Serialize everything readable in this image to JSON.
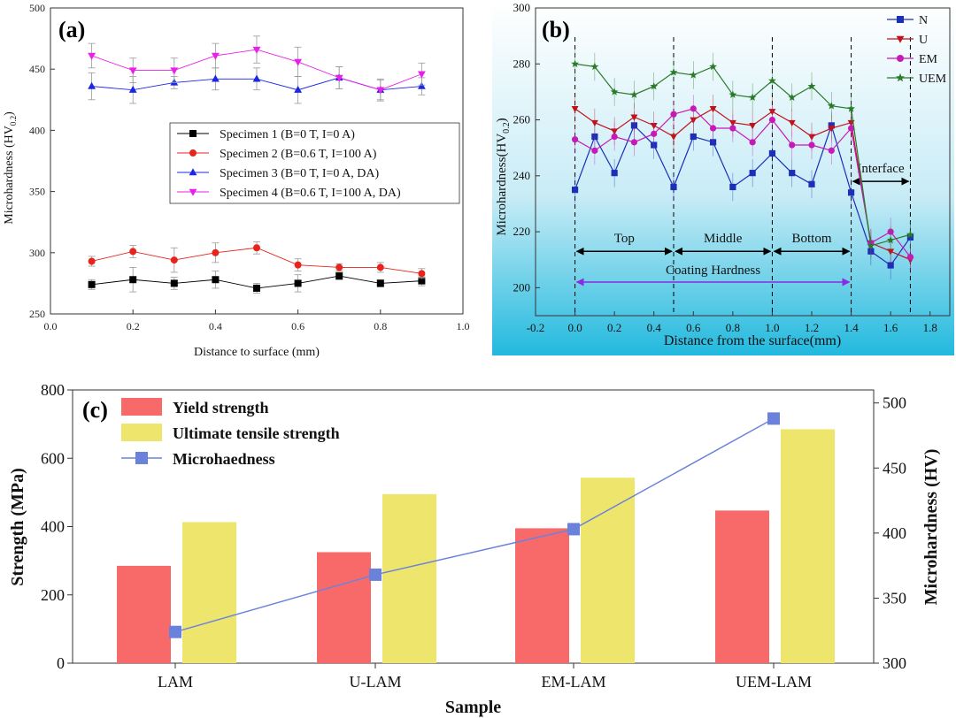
{
  "chart_data": [
    {
      "id": "a",
      "panel_label": "(a)",
      "type": "line",
      "xlabel": "Distance to surface (mm)",
      "ylabel": "Microhardness (HV",
      "ylabel_sub": "0.2",
      "ylabel_close": ")",
      "xlim": [
        0.0,
        1.0
      ],
      "ylim": [
        250,
        500
      ],
      "xticks": [
        "0.0",
        "0.2",
        "0.4",
        "0.6",
        "0.8",
        "1.0"
      ],
      "yticks": [
        "250",
        "300",
        "350",
        "400",
        "450",
        "500"
      ],
      "legend_position": "center-right",
      "x": [
        0.1,
        0.2,
        0.3,
        0.4,
        0.5,
        0.6,
        0.7,
        0.8,
        0.9
      ],
      "series": [
        {
          "name": "Specimen 1 (B=0 T, I=0 A)",
          "color": "#000000",
          "marker": "square",
          "values": [
            274,
            278,
            275,
            278,
            271,
            275,
            281,
            275,
            277
          ],
          "errors": [
            4,
            10,
            5,
            7,
            4,
            7,
            3,
            3,
            4
          ]
        },
        {
          "name": "Specimen 2 (B=0.6 T, I=100 A)",
          "color": "#e8231c",
          "marker": "circle",
          "values": [
            293,
            301,
            294,
            300,
            304,
            290,
            288,
            288,
            283
          ],
          "errors": [
            4,
            5,
            10,
            8,
            5,
            5,
            3,
            4,
            4
          ]
        },
        {
          "name": "Specimen 3 (B=0 T, I=0 A, DA)",
          "color": "#1c27e6",
          "marker": "triangle-up",
          "values": [
            436,
            433,
            439,
            442,
            442,
            433,
            443,
            433,
            436
          ],
          "errors": [
            11,
            11,
            5,
            9,
            9,
            11,
            9,
            8,
            7
          ]
        },
        {
          "name": "Specimen 4 (B=0.6 T, I=100 A, DA)",
          "color": "#ea1fea",
          "marker": "triangle-down",
          "values": [
            461,
            449,
            449,
            461,
            466,
            456,
            443,
            433,
            446
          ],
          "errors": [
            10,
            10,
            10,
            10,
            11,
            12,
            9,
            9,
            9
          ]
        }
      ]
    },
    {
      "id": "b",
      "panel_label": "(b)",
      "type": "line",
      "xlabel": "Distance from the surface(mm)",
      "ylabel": "Microhardness(HV",
      "ylabel_sub": "0.2",
      "ylabel_close": ")",
      "xlim": [
        -0.2,
        1.9
      ],
      "ylim": [
        190,
        300
      ],
      "xticks": [
        "-0.2",
        "0.0",
        "0.2",
        "0.4",
        "0.6",
        "0.8",
        "1.0",
        "1.2",
        "1.4",
        "1.6",
        "1.8"
      ],
      "yticks": [
        "200",
        "220",
        "240",
        "260",
        "280",
        "300"
      ],
      "legend_position": "top-right",
      "region_labels": [
        "Top",
        "Middle",
        "Bottom",
        "Interface"
      ],
      "annotation": "Coating Hardness",
      "x": [
        0.0,
        0.1,
        0.2,
        0.3,
        0.4,
        0.5,
        0.6,
        0.7,
        0.8,
        0.9,
        1.0,
        1.1,
        1.2,
        1.3,
        1.4,
        1.5,
        1.6,
        1.7
      ],
      "series": [
        {
          "name": "N",
          "color": "#1c2fb8",
          "marker": "square",
          "values": [
            235,
            254,
            241,
            258,
            251,
            236,
            254,
            252,
            236,
            241,
            248,
            241,
            237,
            258,
            234,
            213,
            208,
            218
          ]
        },
        {
          "name": "U",
          "color": "#c0121a",
          "marker": "triangle-down",
          "values": [
            264,
            259,
            256,
            261,
            258,
            254,
            260,
            264,
            259,
            258,
            263,
            259,
            254,
            257,
            259,
            216,
            213,
            210
          ]
        },
        {
          "name": "EM",
          "color": "#c51ab5",
          "marker": "circle",
          "values": [
            253,
            249,
            254,
            252,
            255,
            262,
            264,
            257,
            257,
            252,
            260,
            251,
            251,
            249,
            257,
            216,
            220,
            211
          ]
        },
        {
          "name": "UEM",
          "color": "#2a7a2a",
          "marker": "star",
          "values": [
            280,
            279,
            270,
            269,
            272,
            277,
            276,
            279,
            269,
            268,
            274,
            268,
            272,
            265,
            264,
            215,
            217,
            219
          ]
        }
      ]
    },
    {
      "id": "c",
      "panel_label": "(c)",
      "type": "bar",
      "xlabel": "Sample",
      "ylabel": "Strength (MPa)",
      "y2label": "Microhardness (HV)",
      "categories": [
        "LAM",
        "U-LAM",
        "EM-LAM",
        "UEM-LAM"
      ],
      "ylim": [
        0,
        800
      ],
      "y2lim": [
        300,
        510
      ],
      "yticks": [
        "0",
        "200",
        "400",
        "600",
        "800"
      ],
      "y2ticks": [
        "300",
        "350",
        "400",
        "450",
        "500"
      ],
      "legend_position": "top-left",
      "series": [
        {
          "name": "Yield strength",
          "kind": "bar",
          "color": "#f86a6a",
          "values": [
            285,
            325,
            395,
            447
          ]
        },
        {
          "name": "Ultimate tensile strength",
          "kind": "bar",
          "color": "#eee66c",
          "values": [
            413,
            495,
            543,
            685
          ]
        },
        {
          "name": "Microhaedness",
          "kind": "line",
          "axis": "right",
          "color": "#6b82dc",
          "values": [
            324,
            368,
            403,
            488
          ]
        }
      ]
    }
  ]
}
